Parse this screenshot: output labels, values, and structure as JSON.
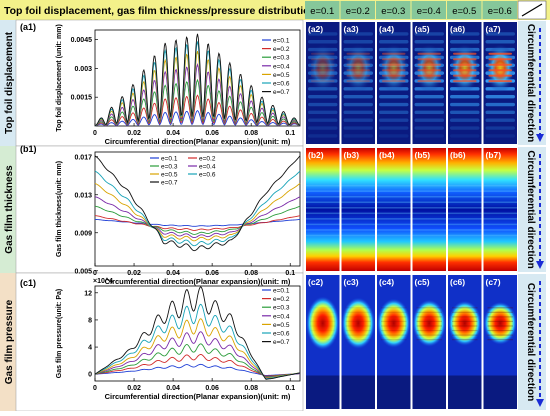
{
  "header": {
    "title": "Top foil displacement, gas film thickness/pressure distribution",
    "e_labels": [
      "e=0.1",
      "e=0.2",
      "e=0.3",
      "e=0.4",
      "e=0.5",
      "e=0.6"
    ],
    "bg": "#f3f18a",
    "cell_bg": "#86c79a"
  },
  "rows": [
    {
      "side_label": "Top foil displacement",
      "side_bg": "#d7e9f2",
      "panel_label": "(a1)",
      "ylabel": "Top foil displacement (unit: mm)",
      "xlabel": "Circumferential direction(Planar expansion)(unit: m)",
      "right_label": "Circumferential direction",
      "heat_labels": [
        "(a2)",
        "(a3)",
        "(a4)",
        "(a5)",
        "(a6)",
        "(a7)"
      ]
    },
    {
      "side_label": "Gas film thickness",
      "side_bg": "#d5ecd3",
      "panel_label": "(b1)",
      "ylabel": "Gas film thickness(unit: mm)",
      "xlabel": "Circumferential direction(Planar expansion)(unit: m)",
      "right_label": "Circumferential direction",
      "heat_labels": [
        "(b2)",
        "(b3)",
        "(b4)",
        "(b5)",
        "(b6)",
        "(b7)"
      ]
    },
    {
      "side_label": "Gas film pressure",
      "side_bg": "#f3e0c6",
      "panel_label": "(c1)",
      "ylabel": "Gas film pressure(unit: Pa)",
      "xlabel": "Circumferential direction(Planar expansion)(unit: m)",
      "right_label": "Circumferential direction",
      "heat_labels": [
        "(c2)",
        "(c3)",
        "(c4)",
        "(c5)",
        "(c6)",
        "(c7)"
      ],
      "exponent_label": "×10^4"
    }
  ],
  "colors": [
    "#1f3fd6",
    "#d12a2a",
    "#2a9c3a",
    "#7a2aa8",
    "#d9a400",
    "#17a3b8",
    "#111111"
  ],
  "chart_data": [
    {
      "type": "line",
      "xlabel": "Circumferential direction(Planar expansion)(unit: m)",
      "ylabel": "Top foil displacement (unit: mm)",
      "xlim": [
        0,
        0.105
      ],
      "ylim": [
        0,
        0.005
      ],
      "xticks": [
        0,
        0.02,
        0.04,
        0.06,
        0.08,
        0.1
      ],
      "yticks": [
        0.0015,
        0.003,
        0.0045
      ],
      "ytick_labels": [
        "0.0015",
        "0.003",
        "0.0045"
      ],
      "legend": "top-right",
      "x": [
        0,
        0.0175,
        0.035,
        0.0525,
        0.07,
        0.0875,
        0.105
      ],
      "series": [
        {
          "name": "e=0.1",
          "values": [
            6e-05,
            0.0003,
            0.0007,
            0.0008,
            0.0005,
            0.0002,
            0.0001
          ]
        },
        {
          "name": "e=0.2",
          "values": [
            7e-05,
            0.0006,
            0.0014,
            0.0016,
            0.001,
            0.0004,
            0.00012
          ]
        },
        {
          "name": "e=0.3",
          "values": [
            8e-05,
            0.0009,
            0.0021,
            0.0024,
            0.0015,
            0.0006,
            0.00015
          ]
        },
        {
          "name": "e=0.4",
          "values": [
            9e-05,
            0.0012,
            0.0028,
            0.0032,
            0.002,
            0.0008,
            0.00018
          ]
        },
        {
          "name": "e=0.5",
          "values": [
            0.0001,
            0.0015,
            0.0034,
            0.0039,
            0.0025,
            0.001,
            0.0002
          ]
        },
        {
          "name": "e=0.6",
          "values": [
            0.00011,
            0.0017,
            0.0039,
            0.0044,
            0.0029,
            0.0011,
            0.00022
          ]
        },
        {
          "name": "e=0.7",
          "values": [
            0.00012,
            0.0019,
            0.0043,
            0.0048,
            0.0032,
            0.0013,
            0.00025
          ]
        }
      ]
    },
    {
      "type": "line",
      "xlabel": "Circumferential direction(Planar expansion)(unit: m)",
      "ylabel": "Gas film thickness(unit: mm)",
      "xlim": [
        0,
        0.105
      ],
      "ylim": [
        0.0055,
        0.0175
      ],
      "xticks": [
        0,
        0.02,
        0.04,
        0.06,
        0.08,
        0.1
      ],
      "yticks": [
        0.005,
        0.009,
        0.013,
        0.017
      ],
      "ytick_labels": [
        "0.005",
        "0.009",
        "0.013",
        "0.017"
      ],
      "legend": "top-center",
      "x": [
        0,
        0.0175,
        0.035,
        0.0525,
        0.07,
        0.0875,
        0.105
      ],
      "series": [
        {
          "name": "e=0.1",
          "values": [
            0.0104,
            0.0101,
            0.0098,
            0.0097,
            0.0098,
            0.0101,
            0.0104
          ]
        },
        {
          "name": "e=0.2",
          "values": [
            0.0108,
            0.0101,
            0.0095,
            0.0093,
            0.0095,
            0.0101,
            0.0108
          ]
        },
        {
          "name": "e=0.3",
          "values": [
            0.0118,
            0.0105,
            0.0093,
            0.0089,
            0.0093,
            0.0105,
            0.0118
          ]
        },
        {
          "name": "e=0.4",
          "values": [
            0.0128,
            0.011,
            0.009,
            0.0086,
            0.009,
            0.011,
            0.0128
          ]
        },
        {
          "name": "e=0.5",
          "values": [
            0.0142,
            0.0116,
            0.0087,
            0.0083,
            0.0087,
            0.0116,
            0.0142
          ]
        },
        {
          "name": "e=0.6",
          "values": [
            0.0155,
            0.0123,
            0.0084,
            0.0078,
            0.0084,
            0.0123,
            0.0155
          ]
        },
        {
          "name": "e=0.7",
          "values": [
            0.0171,
            0.0132,
            0.0081,
            0.0073,
            0.0081,
            0.0132,
            0.0171
          ]
        }
      ]
    },
    {
      "type": "line",
      "xlabel": "Circumferential direction(Planar expansion)(unit: m)",
      "ylabel": "Gas film pressure(unit: Pa)",
      "xlim": [
        0,
        0.105
      ],
      "ylim": [
        -1,
        13
      ],
      "xticks": [
        0,
        0.02,
        0.04,
        0.06,
        0.08,
        0.1
      ],
      "yticks": [
        0,
        4,
        8,
        12
      ],
      "ytick_labels": [
        "0",
        "4",
        "8",
        "12"
      ],
      "legend": "top-right",
      "x": [
        0,
        0.0175,
        0.035,
        0.0525,
        0.07,
        0.0875,
        0.105
      ],
      "series": [
        {
          "name": "e=0.1",
          "values": [
            0,
            0.4,
            1.0,
            1.3,
            0.9,
            -0.2,
            0.1
          ]
        },
        {
          "name": "e=0.2",
          "values": [
            0,
            0.8,
            2.0,
            2.6,
            1.8,
            -0.3,
            0.1
          ]
        },
        {
          "name": "e=0.3",
          "values": [
            0,
            1.2,
            3.1,
            4.0,
            2.7,
            -0.4,
            0.1
          ]
        },
        {
          "name": "e=0.4",
          "values": [
            0,
            1.7,
            4.3,
            5.6,
            3.8,
            -0.5,
            0.1
          ]
        },
        {
          "name": "e=0.5",
          "values": [
            0,
            2.2,
            5.6,
            7.3,
            5.0,
            -0.6,
            0.2
          ]
        },
        {
          "name": "e=0.6",
          "values": [
            0,
            2.8,
            7.0,
            9.2,
            6.3,
            -0.7,
            0.2
          ]
        },
        {
          "name": "e=0.7",
          "values": [
            0,
            3.4,
            8.6,
            11.5,
            7.9,
            -0.8,
            0.2
          ]
        }
      ]
    }
  ]
}
